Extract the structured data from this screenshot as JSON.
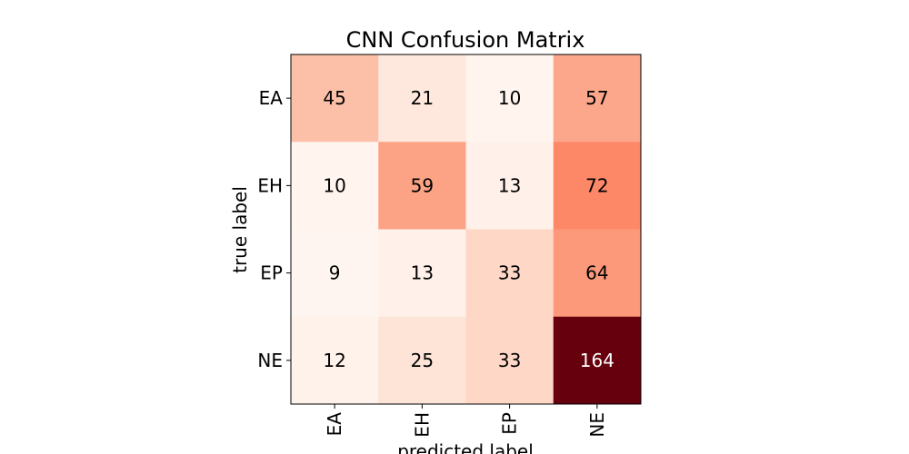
{
  "chart_data": {
    "type": "heatmap",
    "title": "CNN Confusion Matrix",
    "xlabel": "predicted label",
    "ylabel": "true label",
    "x_categories": [
      "EA",
      "EH",
      "EP",
      "NE"
    ],
    "y_categories": [
      "EA",
      "EH",
      "EP",
      "NE"
    ],
    "values": [
      [
        45,
        21,
        10,
        57
      ],
      [
        10,
        59,
        13,
        72
      ],
      [
        9,
        13,
        33,
        64
      ],
      [
        12,
        25,
        33,
        164
      ]
    ],
    "colormap": "Reds",
    "vmin": 9,
    "vmax": 164,
    "grid": false
  }
}
